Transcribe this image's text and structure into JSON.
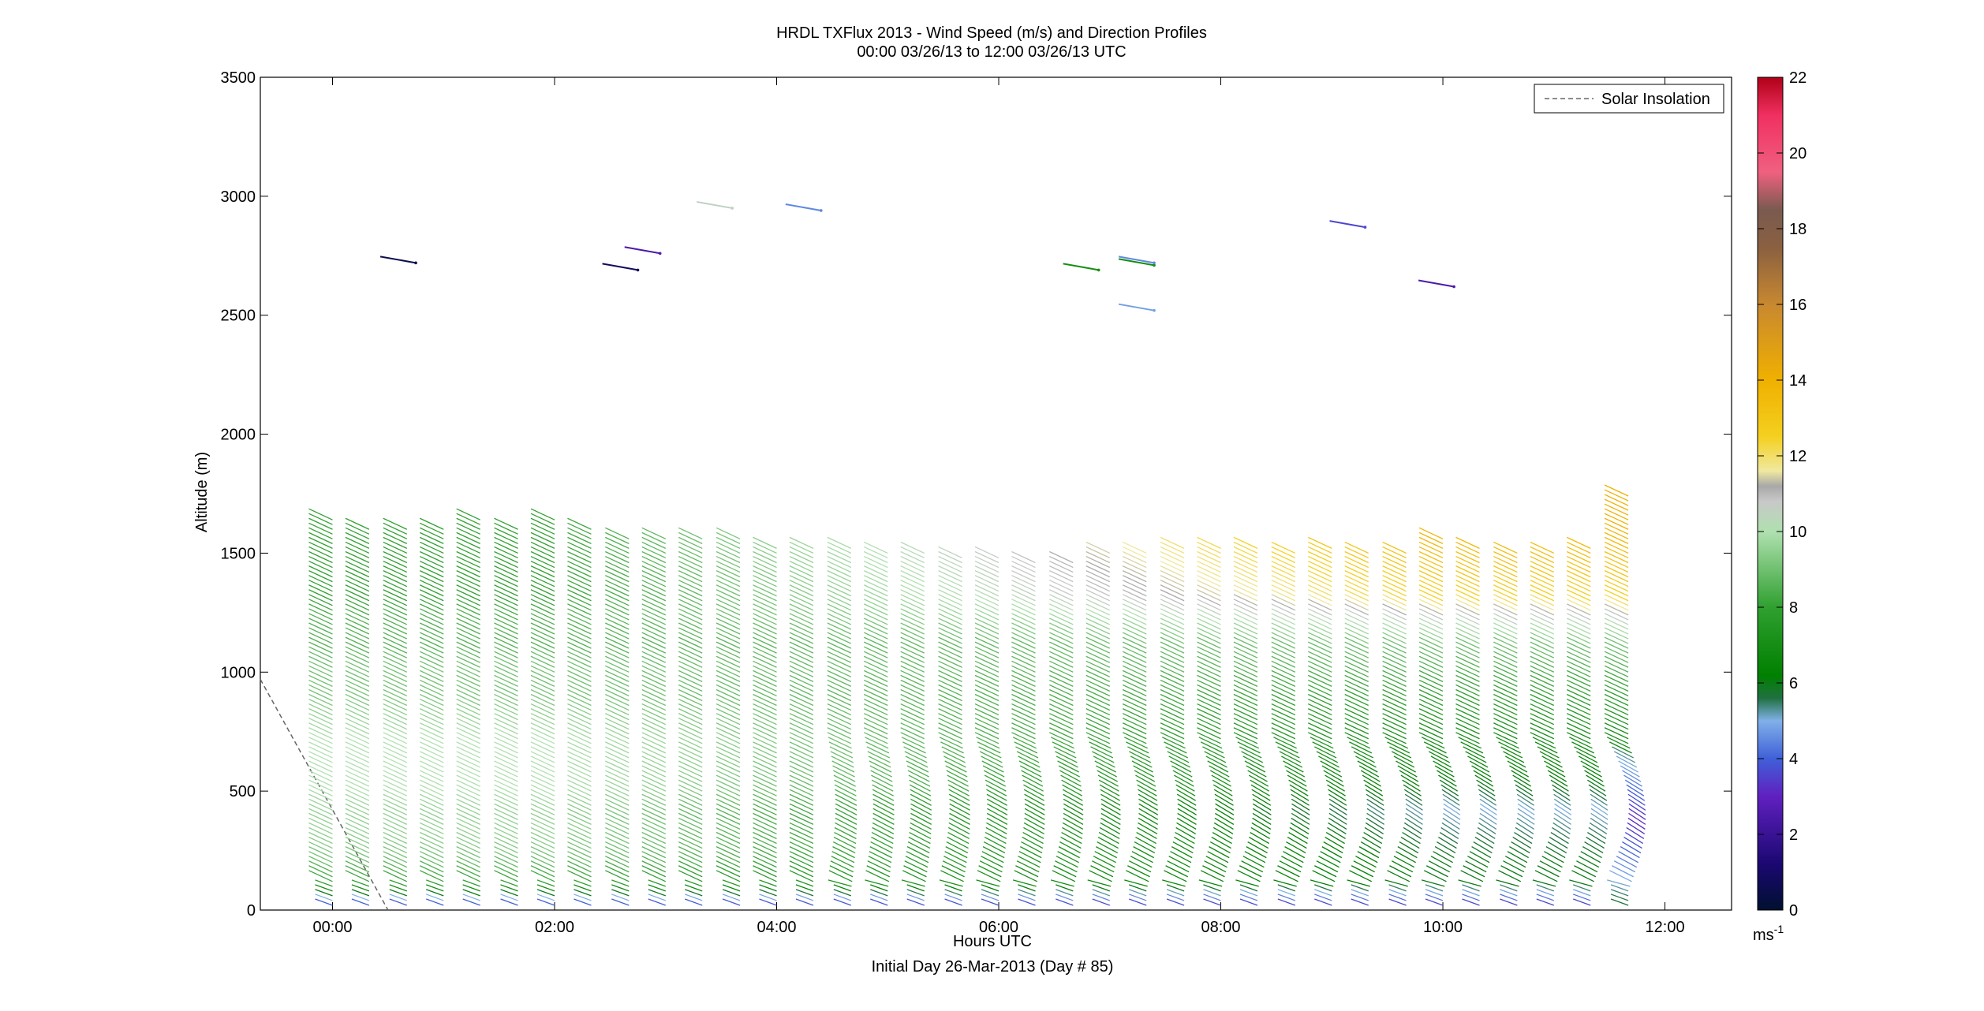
{
  "chart_data": {
    "type": "scatter",
    "title": "HRDL TXFlux 2013 - Wind Speed (m/s) and Direction Profiles",
    "subtitle": "00:00 03/26/13 to 12:00 03/26/13  UTC",
    "xlabel": "Hours UTC",
    "xlabel2": "Initial Day 26-Mar-2013 (Day # 85)",
    "ylabel": "Altitude (m)",
    "xlim": [
      -0.65,
      12.6
    ],
    "ylim": [
      0,
      3500
    ],
    "x_ticks": [
      0,
      2,
      4,
      6,
      8,
      10,
      12
    ],
    "x_tick_labels": [
      "00:00",
      "02:00",
      "04:00",
      "06:00",
      "08:00",
      "10:00",
      "12:00"
    ],
    "y_ticks": [
      0,
      500,
      1000,
      1500,
      2000,
      2500,
      3000,
      3500
    ],
    "y_tick_labels": [
      "0",
      "500",
      "1000",
      "1500",
      "2000",
      "2500",
      "3000",
      "3500"
    ],
    "legend": {
      "entries": [
        "Solar Insolation"
      ],
      "placement": "top-right",
      "style": "dashed",
      "color": "#666666"
    },
    "colorbar": {
      "range": [
        0,
        22
      ],
      "ticks": [
        0,
        2,
        4,
        6,
        8,
        10,
        12,
        14,
        16,
        18,
        20,
        22
      ],
      "tick_labels": [
        "0",
        "2",
        "4",
        "6",
        "8",
        "10",
        "12",
        "14",
        "16",
        "18",
        "20",
        "22"
      ],
      "unit_base": "ms",
      "unit_exp": "-1",
      "stops": [
        {
          "v": 0,
          "c": "#001030"
        },
        {
          "v": 1.2,
          "c": "#1a0870"
        },
        {
          "v": 3,
          "c": "#6020c0"
        },
        {
          "v": 4,
          "c": "#4060d8"
        },
        {
          "v": 5,
          "c": "#80b0e8"
        },
        {
          "v": 5.6,
          "c": "#207040"
        },
        {
          "v": 6.2,
          "c": "#008000"
        },
        {
          "v": 8,
          "c": "#30a030"
        },
        {
          "v": 10,
          "c": "#b0e0b0"
        },
        {
          "v": 10.8,
          "c": "#c8c8c8"
        },
        {
          "v": 11.2,
          "c": "#a8a8a8"
        },
        {
          "v": 11.6,
          "c": "#f0e8a0"
        },
        {
          "v": 12.5,
          "c": "#f4d020"
        },
        {
          "v": 14,
          "c": "#f0b000"
        },
        {
          "v": 16,
          "c": "#c88830"
        },
        {
          "v": 17.5,
          "c": "#8a6040"
        },
        {
          "v": 18.5,
          "c": "#7a5a50"
        },
        {
          "v": 19.5,
          "c": "#f06080"
        },
        {
          "v": 21,
          "c": "#f03060"
        },
        {
          "v": 22,
          "c": "#b00018"
        }
      ]
    },
    "solar_insolation": {
      "x": [
        -0.65,
        0.5
      ],
      "y": [
        970,
        0
      ]
    },
    "profile_times": [
      0.0,
      0.33,
      0.67,
      1.0,
      1.33,
      1.67,
      2.0,
      2.33,
      2.67,
      3.0,
      3.33,
      3.67,
      4.0,
      4.33,
      4.67,
      5.0,
      5.33,
      5.67,
      6.0,
      6.33,
      6.67,
      7.0,
      7.33,
      7.67,
      8.0,
      8.33,
      8.67,
      9.0,
      9.33,
      9.67,
      10.0,
      10.33,
      10.67,
      11.0,
      11.33,
      11.67
    ],
    "profile_tops": [
      1640,
      1600,
      1600,
      1600,
      1640,
      1600,
      1640,
      1600,
      1560,
      1560,
      1560,
      1560,
      1520,
      1520,
      1520,
      1500,
      1500,
      1480,
      1480,
      1460,
      1460,
      1500,
      1500,
      1520,
      1520,
      1520,
      1500,
      1520,
      1500,
      1500,
      1560,
      1520,
      1500,
      1500,
      1520,
      1740
    ],
    "speed_profile_model": {
      "altitude_m": [
        0,
        100,
        200,
        300,
        400,
        500,
        600,
        700,
        800,
        900,
        1000,
        1100,
        1200,
        1300,
        1400,
        1500,
        1600,
        1700
      ],
      "early_hours_0_3_speed_ms": [
        3,
        8,
        9,
        9.5,
        9.5,
        10,
        10,
        10,
        9.5,
        9,
        9,
        8.5,
        8.5,
        8,
        8,
        8,
        8,
        8
      ],
      "late_hours_8_12_speed_ms": [
        3,
        6,
        6,
        5.5,
        5,
        6,
        6.5,
        7,
        7.5,
        8,
        8.5,
        9,
        10.5,
        12.5,
        13,
        13.5,
        14,
        14
      ]
    },
    "high_altitude_barbs": [
      {
        "x": 0.75,
        "y": 2720,
        "speed": 0.5
      },
      {
        "x": 2.75,
        "y": 2690,
        "speed": 0.8
      },
      {
        "x": 2.95,
        "y": 2760,
        "speed": 2.5
      },
      {
        "x": 3.6,
        "y": 2950,
        "speed": 10.5
      },
      {
        "x": 4.4,
        "y": 2940,
        "speed": 4.5
      },
      {
        "x": 6.9,
        "y": 2690,
        "speed": 7
      },
      {
        "x": 7.4,
        "y": 2710,
        "speed": 7
      },
      {
        "x": 7.4,
        "y": 2720,
        "speed": 4.5
      },
      {
        "x": 7.4,
        "y": 2520,
        "speed": 4.8
      },
      {
        "x": 9.3,
        "y": 2870,
        "speed": 3.6
      },
      {
        "x": 10.1,
        "y": 2620,
        "speed": 2.5
      }
    ]
  }
}
